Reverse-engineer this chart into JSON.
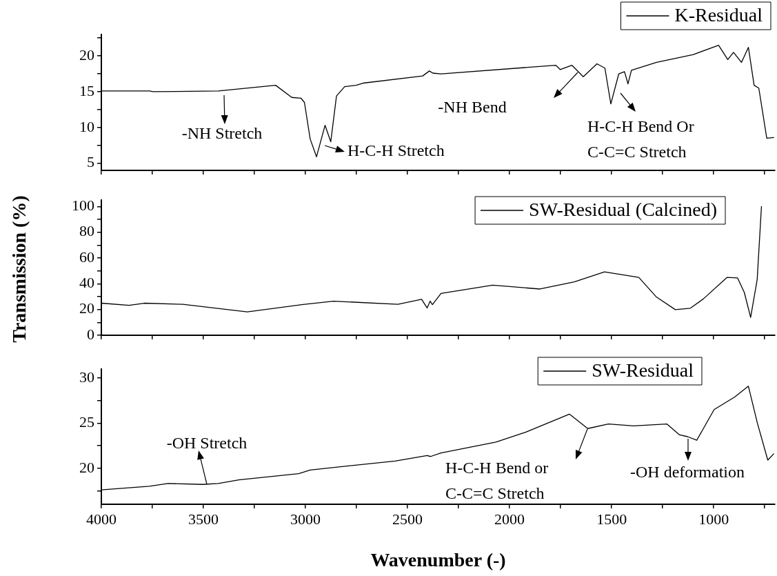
{
  "chart_data": [
    {
      "type": "line",
      "xlim": [
        4000,
        700
      ],
      "xticks": [
        4000,
        {
          "value": 3750,
          "label": null
        },
        3500,
        {
          "value": 3250,
          "label": null
        },
        3000,
        {
          "value": 2750,
          "label": null
        },
        2500,
        {
          "value": 2250,
          "label": null
        },
        2000,
        {
          "value": 1750,
          "label": null
        },
        1500,
        {
          "value": 1250,
          "label": null
        },
        1000,
        {
          "value": 750,
          "label": null
        }
      ],
      "ylim": [
        4,
        23
      ],
      "yticks": [
        5,
        {
          "value": 7.5,
          "label": null
        },
        10,
        {
          "value": 12.5,
          "label": null
        },
        15,
        {
          "value": 17.5,
          "label": null
        },
        20,
        {
          "value": 22.5,
          "label": null
        }
      ],
      "tick_labels": "y",
      "grid": false,
      "legend": "top right",
      "marker": "none",
      "line_style": "solid",
      "series": [
        {
          "name": "K-Residual",
          "color": "#000000",
          "x": [
            4000,
            3764,
            3747,
            3427,
            3146,
            3067,
            3022,
            3005,
            2977,
            2946,
            2904,
            2876,
            2848,
            2808,
            2752,
            2718,
            2426,
            2393,
            2376,
            2336,
            1774,
            1752,
            1695,
            1639,
            1572,
            1533,
            1504,
            1465,
            1437,
            1420,
            1403,
            1280,
            1100,
            976,
            931,
            903,
            864,
            830,
            802,
            779,
            740,
            706
          ],
          "values": [
            15.1,
            15.1,
            15.0,
            15.1,
            15.9,
            14.2,
            14.1,
            13.5,
            8.4,
            5.9,
            10.3,
            8.0,
            14.4,
            15.7,
            15.9,
            16.2,
            17.2,
            17.9,
            17.6,
            17.5,
            18.7,
            18.1,
            18.7,
            17.1,
            18.9,
            18.3,
            13.3,
            17.5,
            17.8,
            16.1,
            18.0,
            19.1,
            20.2,
            21.5,
            19.5,
            20.5,
            19.1,
            21.2,
            15.9,
            15.5,
            8.5,
            8.6
          ]
        }
      ],
      "annotations": [
        "-NH Stretch",
        "H-C-H Stretch",
        "-NH Bend",
        "H-C-H Bend Or\nC-C=C Stretch"
      ]
    },
    {
      "type": "line",
      "xlim": [
        4000,
        700
      ],
      "xticks": [
        4000,
        {
          "value": 3750,
          "label": null
        },
        3500,
        {
          "value": 3250,
          "label": null
        },
        3000,
        {
          "value": 2750,
          "label": null
        },
        2500,
        {
          "value": 2250,
          "label": null
        },
        2000,
        {
          "value": 1750,
          "label": null
        },
        1500,
        {
          "value": 1250,
          "label": null
        },
        1000,
        {
          "value": 750,
          "label": null
        }
      ],
      "ylim": [
        0,
        105
      ],
      "yticks": [
        0,
        {
          "value": 10,
          "label": null
        },
        20,
        {
          "value": 30,
          "label": null
        },
        40,
        {
          "value": 50,
          "label": null
        },
        60,
        {
          "value": 70,
          "label": null
        },
        80,
        {
          "value": 90,
          "label": null
        },
        100
      ],
      "ylabel": "Transmission (%)",
      "tick_labels": "y",
      "grid": false,
      "legend": "top right",
      "marker": "none",
      "line_style": "solid",
      "series": [
        {
          "name": "SW-Residual (Calcined)",
          "color": "#000000",
          "x": [
            4000,
            3864,
            3790,
            3601,
            3285,
            3011,
            2863,
            2547,
            2431,
            2404,
            2389,
            2378,
            2336,
            2083,
            1851,
            1683,
            1535,
            1367,
            1282,
            1188,
            1114,
            1051,
            935,
            883,
            850,
            819,
            787,
            766
          ],
          "values": [
            24.9,
            23.2,
            24.9,
            24,
            18.2,
            23.9,
            26.5,
            24,
            27.9,
            21.2,
            26.5,
            23.8,
            32.5,
            38.9,
            35.9,
            41.5,
            49.2,
            44.9,
            29.9,
            19.9,
            21,
            28.2,
            44.9,
            44.5,
            33.2,
            13.9,
            43.2,
            100
          ]
        }
      ]
    },
    {
      "type": "line",
      "xlim": [
        4000,
        700
      ],
      "xticks": [
        4000,
        {
          "value": 3750,
          "label": null
        },
        3500,
        {
          "value": 3250,
          "label": null
        },
        3000,
        {
          "value": 2750,
          "label": null
        },
        2500,
        {
          "value": 2250,
          "label": null
        },
        2000,
        {
          "value": 1750,
          "label": null
        },
        1500,
        {
          "value": 1250,
          "label": null
        },
        1000,
        {
          "value": 750,
          "label": null
        }
      ],
      "ylim": [
        16,
        31
      ],
      "yticks": [
        {
          "value": 17.5,
          "label": null
        },
        20,
        {
          "value": 22.5,
          "label": null
        },
        25,
        {
          "value": 27.5,
          "label": null
        },
        30
      ],
      "xlabel": "Wavenumber (-)",
      "grid": false,
      "legend": "top right",
      "marker": "none",
      "line_style": "solid",
      "series": [
        {
          "name": "SW-Residual",
          "color": "#000000",
          "x": [
            4000,
            3764,
            3674,
            3505,
            3427,
            3326,
            3033,
            2977,
            2561,
            2404,
            2387,
            2336,
            2067,
            1920,
            1707,
            1617,
            1516,
            1392,
            1229,
            1167,
            1128,
            1083,
            998,
            897,
            830,
            786,
            735,
            706
          ],
          "values": [
            17.6,
            18.0,
            18.3,
            18.2,
            18.3,
            18.7,
            19.4,
            19.8,
            20.8,
            21.4,
            21.3,
            21.7,
            22.9,
            24.0,
            26.0,
            24.4,
            24.9,
            24.7,
            24.9,
            23.7,
            23.5,
            23.1,
            26.5,
            27.9,
            29.1,
            25.0,
            20.9,
            21.6
          ]
        }
      ],
      "annotations": [
        {
          "text": "-OH Stretch",
          "x": 3483,
          "y": 18.2
        },
        "H-C-H Bend or\nC-C=C Stretch",
        "-OH deformation"
      ]
    }
  ]
}
